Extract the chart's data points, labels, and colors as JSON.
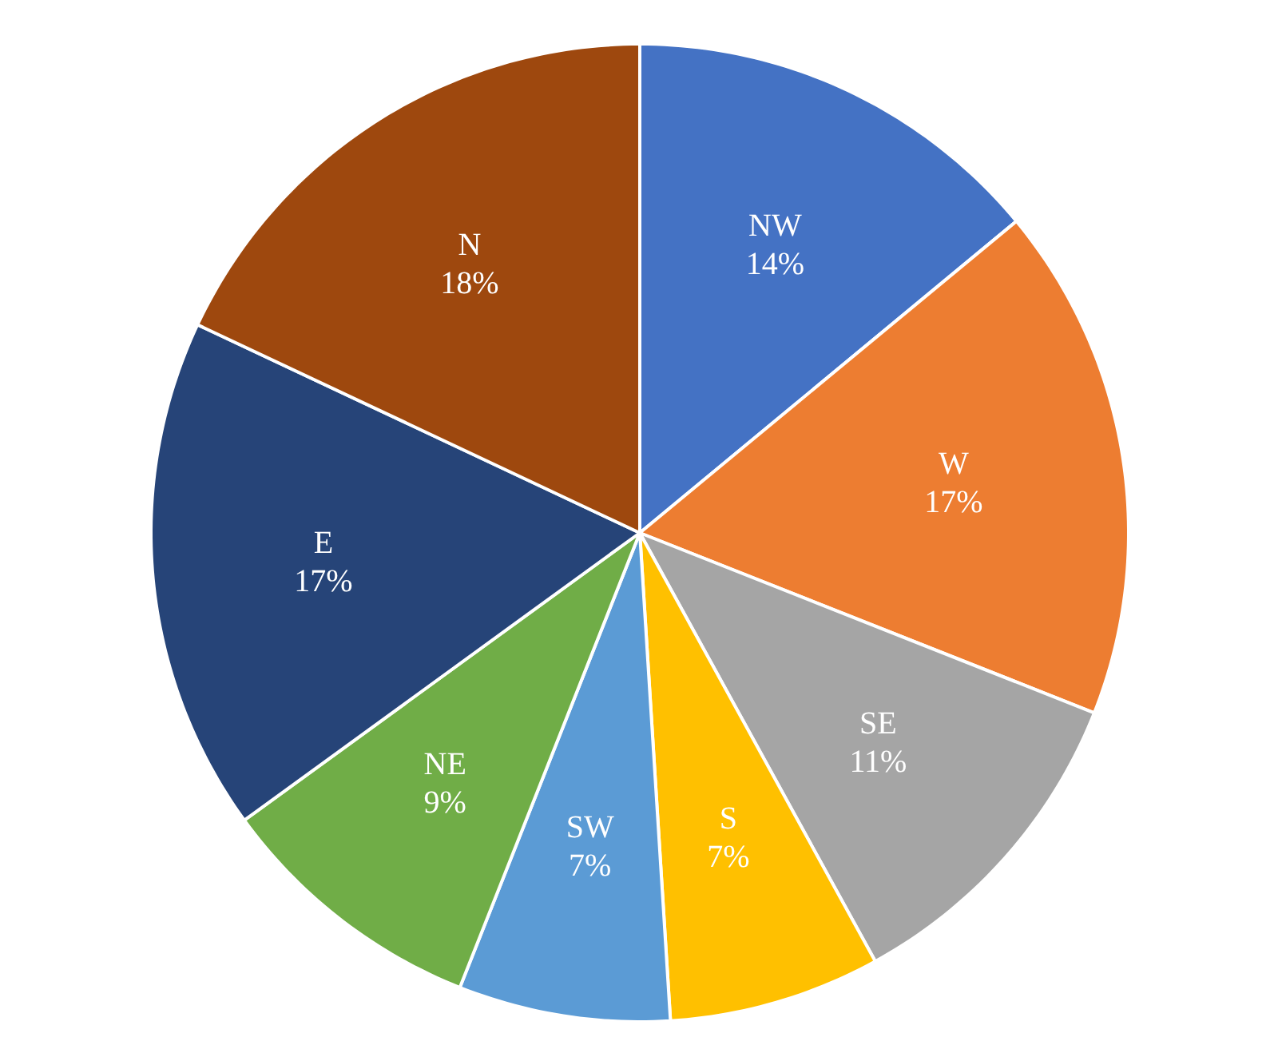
{
  "chart_data": {
    "type": "pie",
    "categories": [
      "NW",
      "W",
      "SE",
      "S",
      "SW",
      "NE",
      "E",
      "N"
    ],
    "values": [
      14,
      17,
      11,
      7,
      7,
      9,
      17,
      18
    ],
    "value_labels": [
      "14%",
      "17%",
      "11%",
      "7%",
      "7%",
      "9%",
      "17%",
      "18%"
    ],
    "colors": [
      "#4472c4",
      "#ed7d31",
      "#a5a5a5",
      "#ffc000",
      "#5b9bd5",
      "#70ad47",
      "#264478",
      "#9e480e"
    ],
    "legend": false
  }
}
